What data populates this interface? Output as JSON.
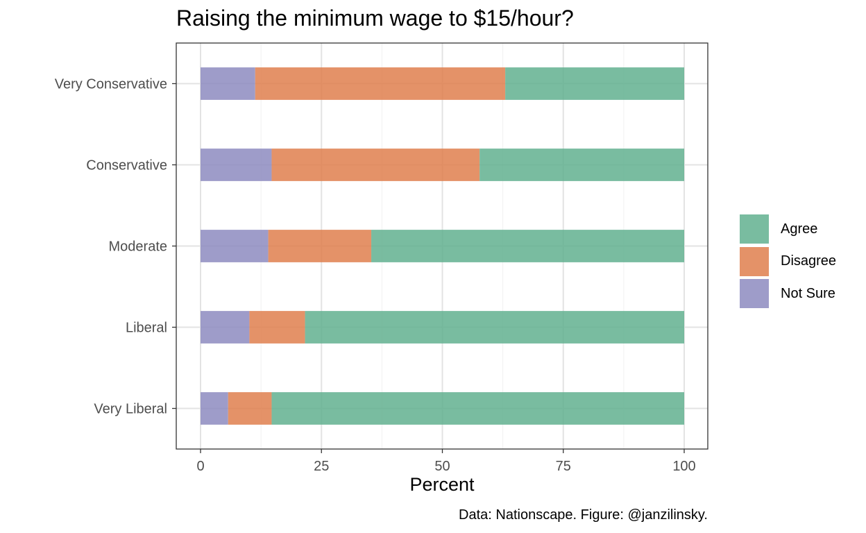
{
  "chart_data": {
    "type": "bar",
    "orientation": "horizontal",
    "stacked": true,
    "title": "Raising the minimum wage to $15/hour?",
    "xlabel": "Percent",
    "ylabel": "",
    "caption": "Data: Nationscape. Figure: @janzilinsky.",
    "categories": [
      "Very Conservative",
      "Conservative",
      "Moderate",
      "Liberal",
      "Very Liberal"
    ],
    "series": [
      {
        "name": "Not Sure",
        "color": "#8d8bc0",
        "values": [
          11.3,
          14.7,
          14.0,
          10.1,
          5.7
        ]
      },
      {
        "name": "Disagree",
        "color": "#df7f4e",
        "values": [
          51.7,
          43.0,
          21.3,
          11.5,
          9.0
        ]
      },
      {
        "name": "Agree",
        "color": "#61b08f",
        "values": [
          37.0,
          42.3,
          64.7,
          78.4,
          85.3
        ]
      }
    ],
    "legend_order": [
      "Agree",
      "Disagree",
      "Not Sure"
    ],
    "xlim": [
      -4.7,
      105
    ],
    "xticks": [
      0,
      25,
      50,
      75,
      100
    ],
    "grid": true,
    "legend_position": "right"
  }
}
